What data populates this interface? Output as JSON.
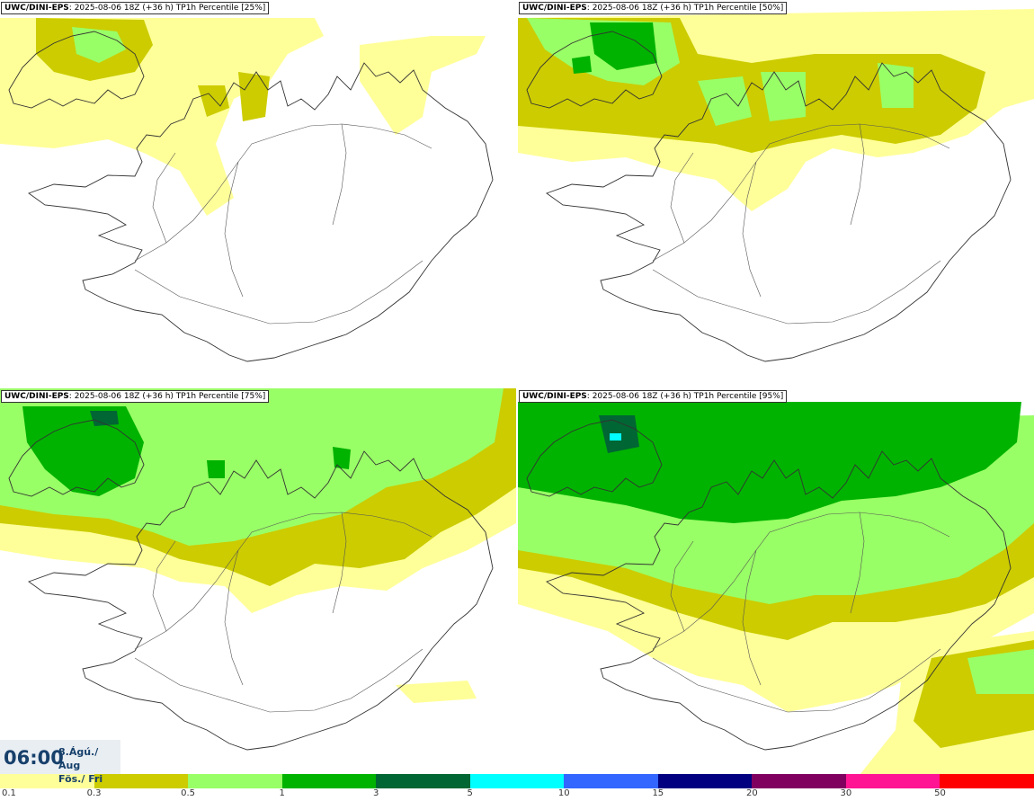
{
  "panels": [
    {
      "model": "UWC/DINI-EPS",
      "info": ": 2025-08-06 18Z (+36 h) TP1h Percentile [25%]",
      "level": 0
    },
    {
      "model": "UWC/DINI-EPS",
      "info": ": 2025-08-06 18Z (+36 h) TP1h Percentile [50%]",
      "level": 1
    },
    {
      "model": "UWC/DINI-EPS",
      "info": ": 2025-08-06 18Z (+36 h) TP1h Percentile [75%]",
      "level": 2
    },
    {
      "model": "UWC/DINI-EPS",
      "info": ": 2025-08-06 18Z (+36 h) TP1h Percentile [95%]",
      "level": 3
    }
  ],
  "time": {
    "clock": "06:00",
    "date_line1": "8.Ágú./ Aug",
    "date_line2": "Fös./ Fri"
  },
  "colorbar": {
    "colors": [
      "#ffff99",
      "#cccc00",
      "#99ff66",
      "#00b300",
      "#006633",
      "#00ffff",
      "#3366ff",
      "#000080",
      "#800060",
      "#ff1493",
      "#ff0000"
    ],
    "ticks": [
      "0.1",
      "0.3",
      "0.5",
      "1",
      "3",
      "5",
      "10",
      "15",
      "20",
      "30",
      "50"
    ]
  }
}
